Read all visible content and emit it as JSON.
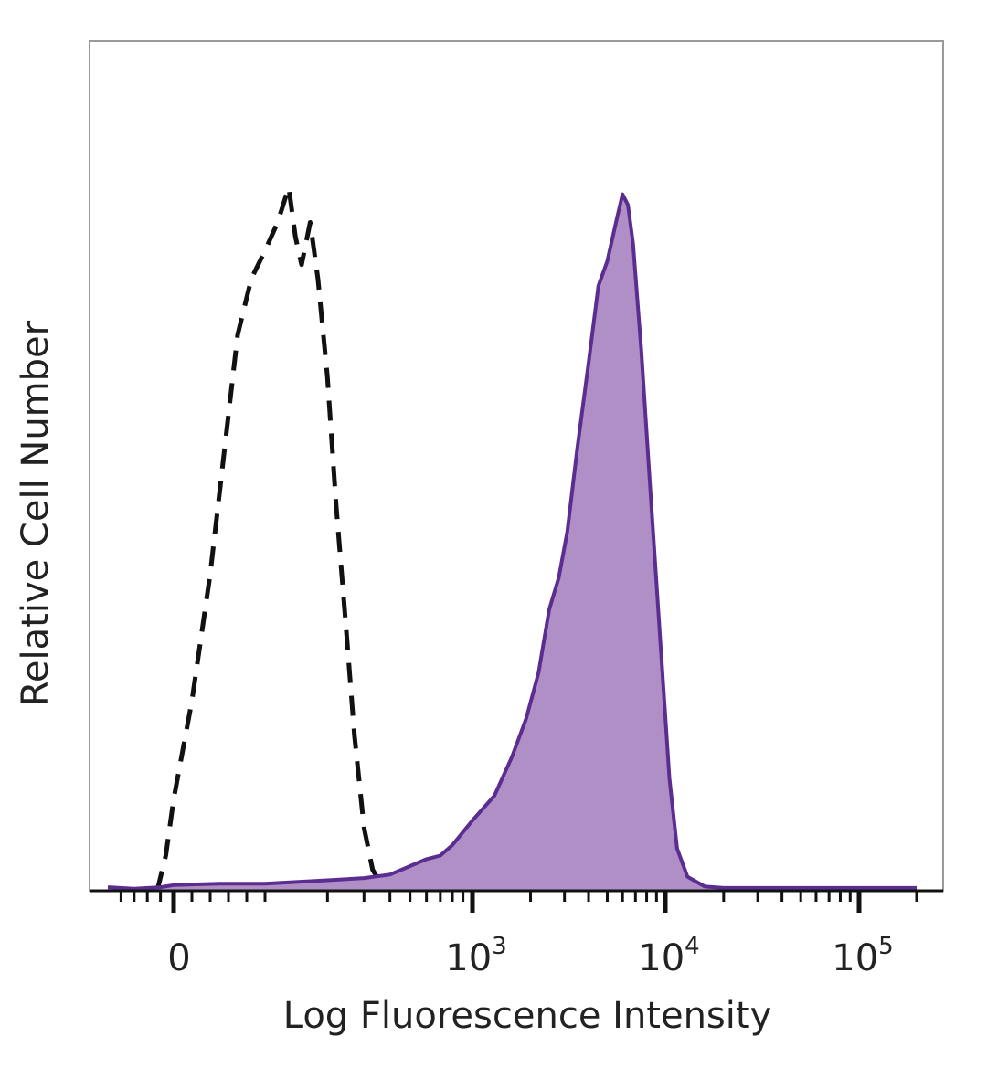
{
  "chart_data": {
    "type": "area",
    "title": "",
    "xlabel": "Log Fluorescence Intensity",
    "ylabel": "Relative Cell Number",
    "x_scale": "biexponential",
    "xlim": [
      -100,
      200000
    ],
    "ylim": [
      0,
      100
    ],
    "grid": false,
    "legend": "none",
    "x_major_ticks": [
      {
        "value": 0,
        "label": "0",
        "exp": ""
      },
      {
        "value": 1000,
        "label": "10",
        "exp": "3"
      },
      {
        "value": 10000,
        "label": "10",
        "exp": "4"
      },
      {
        "value": 100000,
        "label": "10",
        "exp": "5"
      }
    ],
    "x_minor_ticks": [
      -80,
      -60,
      -40,
      -20,
      20,
      40,
      60,
      80,
      100,
      200,
      300,
      400,
      500,
      600,
      700,
      800,
      900,
      2000,
      3000,
      4000,
      5000,
      6000,
      7000,
      8000,
      9000,
      20000,
      30000,
      40000,
      50000,
      60000,
      70000,
      80000,
      90000,
      200000
    ],
    "series": [
      {
        "style": "dashed",
        "fill": "none",
        "stroke": "#111111",
        "points": [
          [
            -25,
            0
          ],
          [
            -12,
            5
          ],
          [
            0,
            13
          ],
          [
            20,
            27
          ],
          [
            40,
            45
          ],
          [
            55,
            62
          ],
          [
            70,
            79
          ],
          [
            85,
            87
          ],
          [
            100,
            91
          ],
          [
            115,
            95
          ],
          [
            130,
            100
          ],
          [
            140,
            93
          ],
          [
            150,
            89
          ],
          [
            165,
            95
          ],
          [
            180,
            87
          ],
          [
            200,
            73
          ],
          [
            220,
            55
          ],
          [
            245,
            38
          ],
          [
            270,
            22
          ],
          [
            300,
            9
          ],
          [
            330,
            3
          ],
          [
            380,
            0
          ]
        ]
      },
      {
        "style": "solid",
        "fill": "#b08fc7",
        "stroke": "#5b2d91",
        "points": [
          [
            -100,
            0.5
          ],
          [
            -60,
            0.3
          ],
          [
            -20,
            0.5
          ],
          [
            0,
            0.8
          ],
          [
            50,
            1
          ],
          [
            100,
            1
          ],
          [
            200,
            1.5
          ],
          [
            300,
            1.8
          ],
          [
            400,
            2.3
          ],
          [
            500,
            3.5
          ],
          [
            600,
            4.5
          ],
          [
            700,
            5
          ],
          [
            800,
            6.5
          ],
          [
            1000,
            10
          ],
          [
            1300,
            13.5
          ],
          [
            1600,
            19
          ],
          [
            1900,
            24.5
          ],
          [
            2200,
            31
          ],
          [
            2500,
            40
          ],
          [
            2800,
            44.5
          ],
          [
            3100,
            51
          ],
          [
            3500,
            63
          ],
          [
            4000,
            75
          ],
          [
            4500,
            86
          ],
          [
            5000,
            89.5
          ],
          [
            5600,
            95.5
          ],
          [
            6000,
            99
          ],
          [
            6400,
            97.5
          ],
          [
            6800,
            92
          ],
          [
            7500,
            77
          ],
          [
            8500,
            54
          ],
          [
            9500,
            34
          ],
          [
            10500,
            16
          ],
          [
            11500,
            6
          ],
          [
            13000,
            2
          ],
          [
            16000,
            0.6
          ],
          [
            20000,
            0.4
          ],
          [
            50000,
            0.4
          ],
          [
            100000,
            0.4
          ],
          [
            200000,
            0.4
          ]
        ]
      }
    ]
  }
}
